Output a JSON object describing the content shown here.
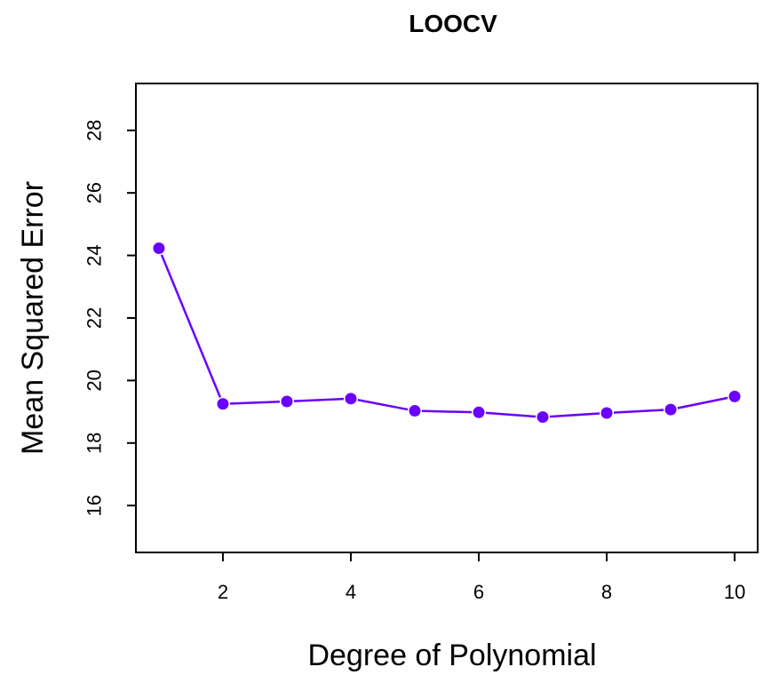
{
  "chart_data": {
    "type": "line",
    "title": "LOOCV",
    "xlabel": "Degree of Polynomial",
    "ylabel": "Mean Squared Error",
    "x": [
      1,
      2,
      3,
      4,
      5,
      6,
      7,
      8,
      9,
      10
    ],
    "series": [
      {
        "values": [
          24.23,
          19.25,
          19.33,
          19.42,
          19.03,
          18.98,
          18.83,
          18.96,
          19.07,
          19.49
        ],
        "color": "#6a00ff"
      }
    ],
    "xlim": [
      0.64,
      10.36
    ],
    "ylim": [
      14.5,
      29.5
    ],
    "xticks": [
      "2",
      "4",
      "6",
      "8",
      "10"
    ],
    "yticks": [
      "16",
      "18",
      "20",
      "22",
      "24",
      "26",
      "28"
    ],
    "grid": false,
    "marker": "filled-circle"
  }
}
